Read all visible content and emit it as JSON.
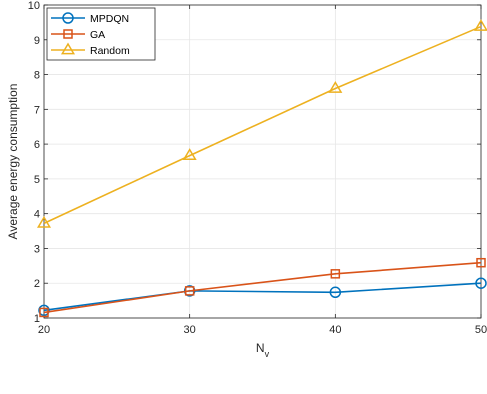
{
  "chart_data": {
    "type": "line",
    "xlabel": "N",
    "xlabel_subscript": "v",
    "ylabel": "Average energy consumption",
    "x": [
      20,
      30,
      40,
      50
    ],
    "xlim": [
      20,
      50
    ],
    "ylim": [
      1,
      10
    ],
    "xticks": [
      20,
      30,
      40,
      50
    ],
    "yticks": [
      1,
      2,
      3,
      4,
      5,
      6,
      7,
      8,
      9,
      10
    ],
    "grid": true,
    "legend_position": "top-left",
    "series": [
      {
        "name": "MPDQN",
        "values": [
          1.22,
          1.78,
          1.74,
          2.0
        ],
        "color": "#0072BD",
        "marker": "circle"
      },
      {
        "name": "GA",
        "values": [
          1.16,
          1.78,
          2.27,
          2.59
        ],
        "color": "#D95319",
        "marker": "square"
      },
      {
        "name": "Random",
        "values": [
          3.72,
          5.67,
          7.6,
          9.38
        ],
        "color": "#EDB120",
        "marker": "triangle"
      }
    ]
  }
}
